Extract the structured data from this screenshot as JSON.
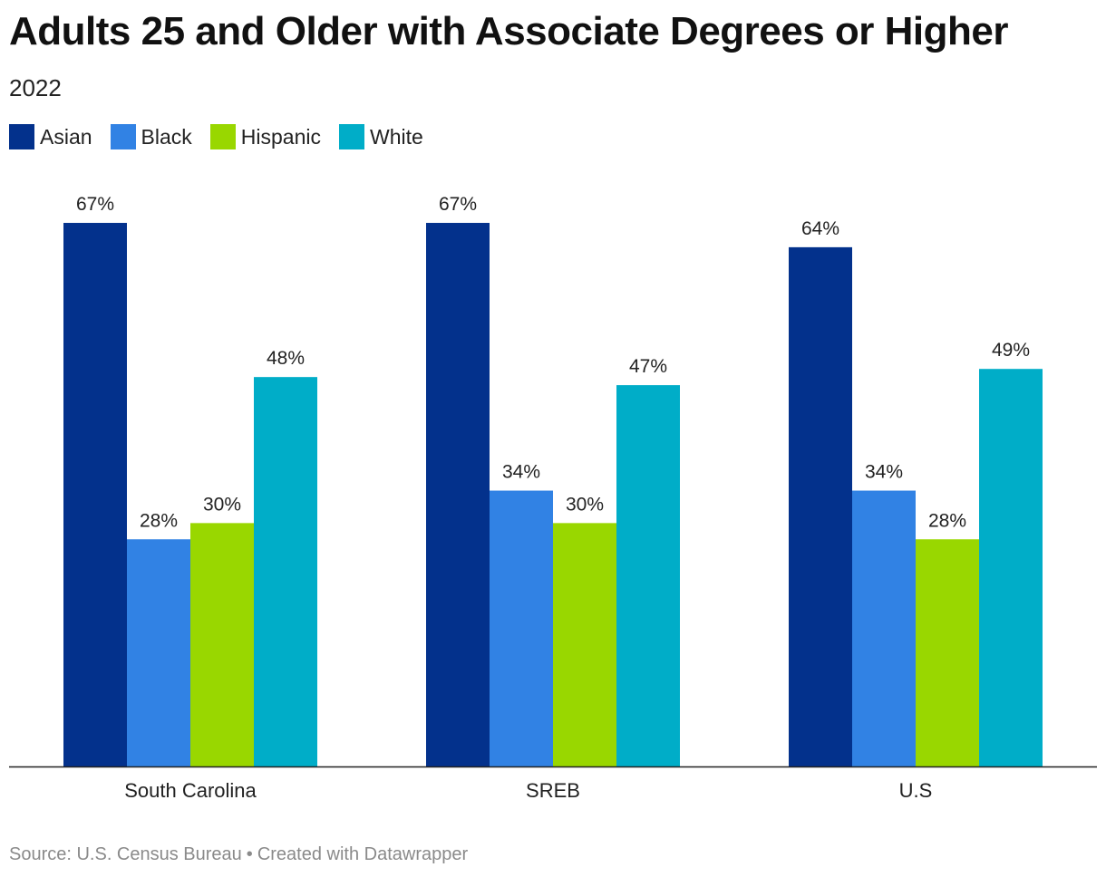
{
  "title": "Adults 25 and Older with Associate Degrees or Higher",
  "subtitle": "2022",
  "legend": [
    {
      "label": "Asian",
      "color": "#03318c"
    },
    {
      "label": "Black",
      "color": "#3182e4"
    },
    {
      "label": "Hispanic",
      "color": "#99d700"
    },
    {
      "label": "White",
      "color": "#00adc8"
    }
  ],
  "chart_data": {
    "type": "bar",
    "categories": [
      "South Carolina",
      "SREB",
      "U.S"
    ],
    "series": [
      {
        "name": "Asian",
        "values": [
          67,
          67,
          64
        ],
        "labels": [
          "67%",
          "67%",
          "64%"
        ],
        "color": "#03318c"
      },
      {
        "name": "Black",
        "values": [
          28,
          34,
          34
        ],
        "labels": [
          "28%",
          "34%",
          "34%"
        ],
        "color": "#3182e4"
      },
      {
        "name": "Hispanic",
        "values": [
          30,
          30,
          28
        ],
        "labels": [
          "30%",
          "30%",
          "28%"
        ],
        "color": "#99d700"
      },
      {
        "name": "White",
        "values": [
          48,
          47,
          49
        ],
        "labels": [
          "48%",
          "47%",
          "49%"
        ],
        "color": "#00adc8"
      }
    ],
    "title": "Adults 25 and Older with Associate Degrees or Higher",
    "subtitle": "2022",
    "xlabel": "",
    "ylabel": "",
    "ylim": [
      0,
      67
    ],
    "grid": false,
    "legend_position": "top-left"
  },
  "footer": {
    "source": "Source: U.S. Census Bureau",
    "separator": "•",
    "credit": "Created with Datawrapper"
  }
}
